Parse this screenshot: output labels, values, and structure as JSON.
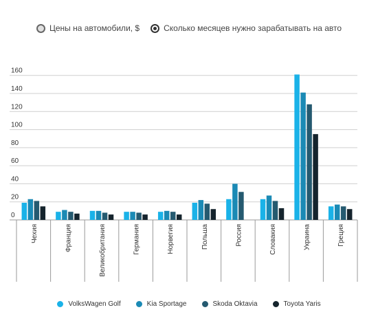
{
  "toggles": [
    {
      "label": "Цены на автомобили, $",
      "selected": false
    },
    {
      "label": "Сколько месяцев нужно зарабатывать на авто",
      "selected": true
    }
  ],
  "chart_data": {
    "type": "bar",
    "categories": [
      "Чехия",
      "Франция",
      "Великобритания",
      "Германия",
      "Норвегия",
      "Польша",
      "Россия",
      "Словакия",
      "Украина",
      "Греция"
    ],
    "series": [
      {
        "name": "VolksWagen Golf",
        "color": "#1ab2e8",
        "values": [
          19,
          9,
          10,
          9,
          9,
          19,
          23,
          23,
          161,
          15
        ]
      },
      {
        "name": "Kia Sportage",
        "color": "#1b8ab5",
        "values": [
          23,
          11,
          10,
          9,
          10,
          22,
          40,
          27,
          141,
          17
        ]
      },
      {
        "name": "Skoda Oktavia",
        "color": "#255a70",
        "values": [
          21,
          9,
          8,
          8,
          9,
          18,
          31,
          21,
          128,
          15
        ]
      },
      {
        "name": "Toyota Yaris",
        "color": "#15242d",
        "values": [
          15,
          7,
          6,
          6,
          6,
          12,
          null,
          13,
          95,
          12
        ]
      }
    ],
    "yticks": [
      0,
      20,
      40,
      60,
      80,
      100,
      120,
      140,
      160
    ],
    "ylim": [
      0,
      160
    ],
    "grid": true,
    "legend": "bottom"
  }
}
